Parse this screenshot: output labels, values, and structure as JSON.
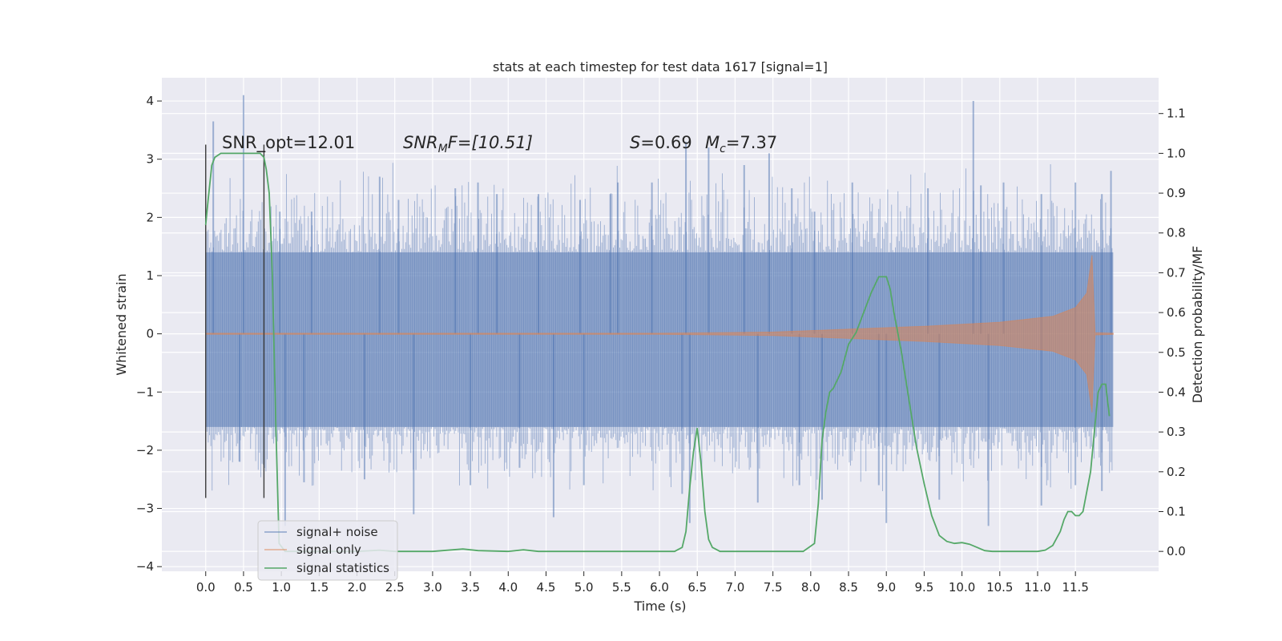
{
  "chart_data": {
    "type": "line",
    "title": "stats at each timestep for test data 1617 [signal=1]",
    "xlabel": "Time (s)",
    "ylabel_left": "Whitened strain",
    "ylabel_right": "Detection probability/MF",
    "xlim": [
      -0.58,
      12.6
    ],
    "ylim_left": [
      -4.08,
      4.4
    ],
    "ylim_right": [
      -0.05,
      1.19
    ],
    "xticks": [
      0.0,
      0.5,
      1.0,
      1.5,
      2.0,
      2.5,
      3.0,
      3.5,
      4.0,
      4.5,
      5.0,
      5.5,
      6.0,
      6.5,
      7.0,
      7.5,
      8.0,
      8.5,
      9.0,
      9.5,
      10.0,
      10.5,
      11.0,
      11.5
    ],
    "xtick_labels": [
      "0.0",
      "0.5",
      "1.0",
      "1.5",
      "2.0",
      "2.5",
      "3.0",
      "3.5",
      "4.0",
      "4.5",
      "5.0",
      "5.5",
      "6.0",
      "6.5",
      "7.0",
      "7.5",
      "8.0",
      "8.5",
      "9.0",
      "9.5",
      "10.0",
      "10.5",
      "11.0",
      "11.5"
    ],
    "yticks_left": [
      -4,
      -3,
      -2,
      -1,
      0,
      1,
      2,
      3,
      4
    ],
    "ytick_labels_left": [
      "−4",
      "−3",
      "−2",
      "−1",
      "0",
      "1",
      "2",
      "3",
      "4"
    ],
    "yticks_right": [
      0.0,
      0.1,
      0.2,
      0.3,
      0.4,
      0.5,
      0.6,
      0.7,
      0.8,
      0.9,
      1.0,
      1.1
    ],
    "ytick_labels_right": [
      "0.0",
      "0.1",
      "0.2",
      "0.3",
      "0.4",
      "0.5",
      "0.6",
      "0.7",
      "0.8",
      "0.9",
      "1.0",
      "1.1"
    ],
    "grid": true,
    "legend": {
      "placement": "lower-left",
      "entries": [
        {
          "label": "signal+ noise",
          "color": "#4c72b0"
        },
        {
          "label": "signal only",
          "color": "#dd8452"
        },
        {
          "label": "signal statistics",
          "color": "#55a868"
        }
      ]
    },
    "annotations": {
      "snr_opt": "SNR_opt=12.01",
      "snr_mf_italic": "SNR",
      "snr_mf_sub": "M",
      "snr_mf_rest": "F=[10.51]",
      "s_italic": "S",
      "s_value": "=0.69",
      "mc_italic": "M",
      "mc_sub": "c",
      "mc_value": "=7.37"
    },
    "markers_vlines": {
      "x": [
        0.0,
        0.77
      ],
      "y_range_left": [
        -2.82,
        3.25
      ],
      "color": "#3a3a3a"
    },
    "series": [
      {
        "name": "signal+ noise",
        "color": "#4c72b0",
        "x_range": [
          0.0,
          12.0
        ],
        "core_band": [
          -1.6,
          1.4
        ],
        "upper_spikes": [
          [
            0.1,
            3.65
          ],
          [
            0.5,
            4.1
          ],
          [
            0.98,
            2.1
          ],
          [
            1.4,
            2.1
          ],
          [
            2.3,
            2.7
          ],
          [
            2.55,
            2.3
          ],
          [
            3.3,
            2.5
          ],
          [
            3.6,
            2.6
          ],
          [
            3.85,
            2.4
          ],
          [
            4.4,
            2.4
          ],
          [
            4.95,
            2.3
          ],
          [
            5.35,
            2.4
          ],
          [
            5.45,
            2.6
          ],
          [
            5.9,
            2.6
          ],
          [
            6.35,
            3.3
          ],
          [
            6.65,
            3.2
          ],
          [
            7.12,
            2.9
          ],
          [
            7.45,
            3.1
          ],
          [
            7.75,
            2.5
          ],
          [
            8.05,
            2.1
          ],
          [
            8.55,
            2.6
          ],
          [
            9.55,
            2.5
          ],
          [
            10.25,
            2.55
          ],
          [
            10.55,
            2.6
          ],
          [
            11.05,
            2.4
          ],
          [
            11.5,
            2.6
          ],
          [
            11.85,
            2.4
          ],
          [
            11.97,
            2.8
          ],
          [
            10.15,
            4.0
          ]
        ],
        "lower_spikes": [
          [
            0.45,
            -2.2
          ],
          [
            1.05,
            -3.3
          ],
          [
            1.3,
            -2.55
          ],
          [
            2.1,
            -2.5
          ],
          [
            2.75,
            -3.1
          ],
          [
            3.5,
            -2.6
          ],
          [
            4.15,
            -2.3
          ],
          [
            4.6,
            -3.15
          ],
          [
            5.0,
            -2.6
          ],
          [
            6.3,
            -2.75
          ],
          [
            6.4,
            -3.25
          ],
          [
            7.3,
            -2.9
          ],
          [
            7.85,
            -2.6
          ],
          [
            8.15,
            -2.85
          ],
          [
            8.9,
            -2.6
          ],
          [
            9.0,
            -3.25
          ],
          [
            9.7,
            -2.85
          ],
          [
            10.35,
            -3.3
          ],
          [
            11.05,
            -2.95
          ],
          [
            11.5,
            -2.6
          ],
          [
            11.85,
            -2.7
          ]
        ]
      },
      {
        "name": "signal only",
        "color": "#dd8452",
        "x_range": [
          0.0,
          12.0
        ],
        "envelope": {
          "x": [
            0.0,
            6.0,
            7.5,
            8.5,
            9.5,
            10.5,
            11.2,
            11.5,
            11.65,
            11.72,
            11.76,
            12.0
          ],
          "amplitude": [
            0.01,
            0.01,
            0.03,
            0.08,
            0.13,
            0.2,
            0.3,
            0.45,
            0.7,
            1.35,
            0.02,
            0.01
          ]
        }
      },
      {
        "name": "signal statistics",
        "color": "#55a868",
        "x": [
          0.0,
          0.03,
          0.08,
          0.12,
          0.2,
          0.3,
          0.45,
          0.6,
          0.72,
          0.77,
          0.8,
          0.84,
          0.88,
          0.93,
          0.97,
          1.05,
          1.5,
          2.0,
          2.3,
          2.5,
          3.0,
          3.4,
          3.6,
          4.0,
          4.2,
          4.4,
          5.0,
          5.5,
          6.0,
          6.2,
          6.3,
          6.35,
          6.4,
          6.45,
          6.5,
          6.55,
          6.6,
          6.65,
          6.7,
          6.8,
          7.0,
          7.5,
          7.9,
          8.05,
          8.1,
          8.15,
          8.2,
          8.25,
          8.3,
          8.4,
          8.5,
          8.6,
          8.7,
          8.8,
          8.9,
          9.0,
          9.05,
          9.1,
          9.2,
          9.3,
          9.4,
          9.5,
          9.6,
          9.7,
          9.8,
          9.9,
          10.0,
          10.1,
          10.2,
          10.3,
          10.4,
          10.6,
          11.0,
          11.1,
          11.2,
          11.3,
          11.35,
          11.4,
          11.45,
          11.5,
          11.55,
          11.6,
          11.7,
          11.75,
          11.8,
          11.85,
          11.9,
          11.93,
          11.95
        ],
        "values": [
          0.82,
          0.88,
          0.97,
          0.99,
          1.0,
          1.0,
          1.0,
          1.0,
          1.0,
          0.99,
          0.96,
          0.9,
          0.7,
          0.3,
          0.02,
          0.0,
          0.0,
          0.0,
          0.003,
          0.0,
          0.0,
          0.006,
          0.002,
          0.0,
          0.004,
          0.0,
          0.0,
          0.0,
          0.0,
          0.0,
          0.01,
          0.05,
          0.16,
          0.25,
          0.31,
          0.22,
          0.1,
          0.03,
          0.01,
          0.0,
          0.0,
          0.0,
          0.0,
          0.02,
          0.12,
          0.28,
          0.35,
          0.4,
          0.41,
          0.45,
          0.52,
          0.55,
          0.6,
          0.65,
          0.69,
          0.69,
          0.66,
          0.6,
          0.5,
          0.38,
          0.26,
          0.17,
          0.09,
          0.04,
          0.025,
          0.02,
          0.022,
          0.018,
          0.01,
          0.002,
          0.0,
          0.0,
          0.0,
          0.003,
          0.015,
          0.05,
          0.08,
          0.1,
          0.1,
          0.09,
          0.09,
          0.1,
          0.2,
          0.3,
          0.4,
          0.42,
          0.42,
          0.37,
          0.34
        ]
      }
    ]
  }
}
